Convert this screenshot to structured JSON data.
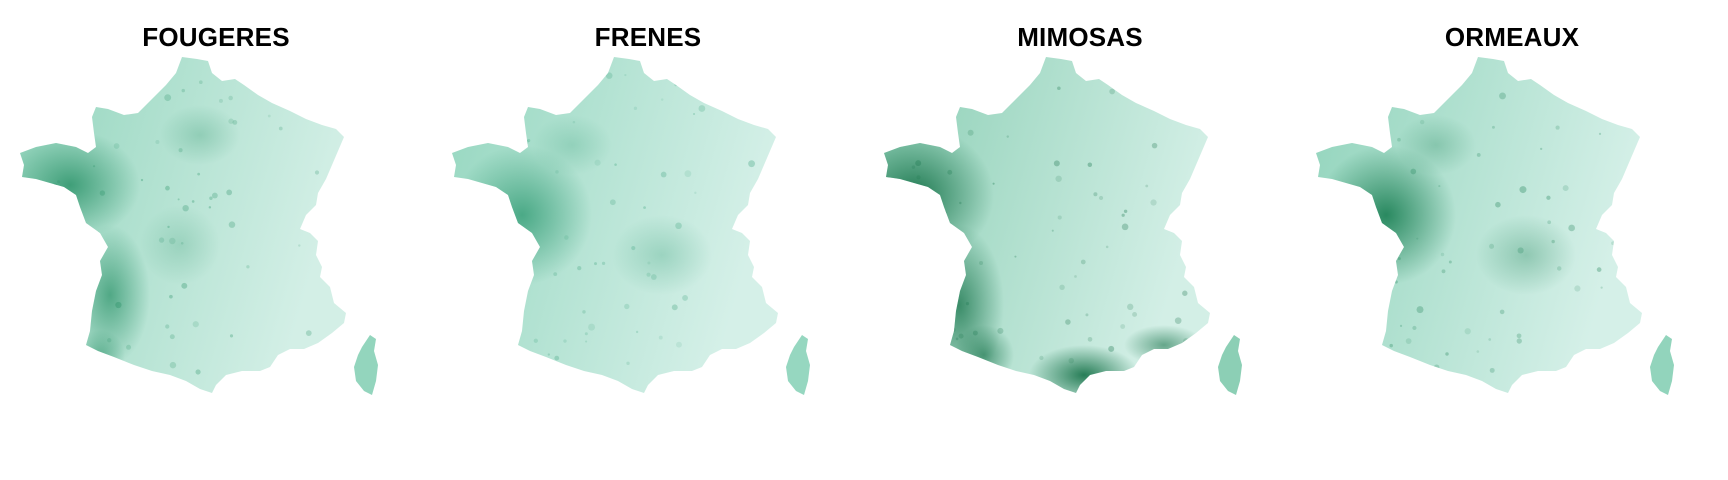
{
  "panels": [
    {
      "title": "FOUGERES",
      "palette": {
        "light": "#d3efe6",
        "mid": "#93d5bd",
        "dark": "#1e8a5e"
      },
      "hotspot": "west-coast"
    },
    {
      "title": "FRENES",
      "palette": {
        "light": "#d5f0e8",
        "mid": "#96d7c0",
        "dark": "#3aa07a"
      },
      "hotspot": "vendee"
    },
    {
      "title": "MIMOSAS",
      "palette": {
        "light": "#d3efe6",
        "mid": "#8ccfb5",
        "dark": "#0b6a3f"
      },
      "hotspot": "atlantic-and-mediterranean"
    },
    {
      "title": "ORMEAUX",
      "palette": {
        "light": "#d5f0e8",
        "mid": "#92d4bc",
        "dark": "#137a4d"
      },
      "hotspot": "vendee"
    }
  ]
}
